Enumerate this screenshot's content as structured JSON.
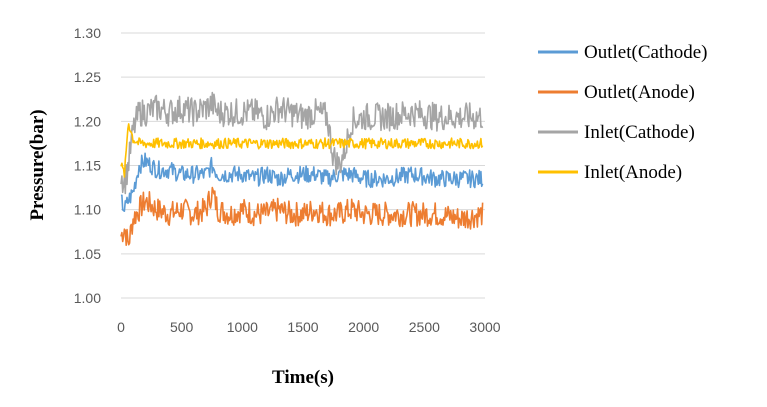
{
  "chart_data": {
    "type": "line",
    "title": "",
    "xlabel": "Time(s)",
    "ylabel": "Pressure(bar)",
    "xlim": [
      0,
      3000
    ],
    "ylim": [
      1.0,
      1.3
    ],
    "x_ticks": [
      "0",
      "500",
      "1000",
      "1500",
      "2000",
      "2500",
      "3000"
    ],
    "y_ticks": [
      "1.00",
      "1.05",
      "1.10",
      "1.15",
      "1.20",
      "1.25",
      "1.30"
    ],
    "grid": "horizontal",
    "legend_position": "right",
    "series": [
      {
        "name": "Outlet(Cathode)",
        "color": "#5B9BD5",
        "x": [
          0,
          30,
          60,
          100,
          150,
          200,
          300,
          400,
          500,
          600,
          700,
          750,
          800,
          900,
          1000,
          1100,
          1200,
          1300,
          1400,
          1500,
          1600,
          1700,
          1800,
          1900,
          2000,
          2200,
          2400,
          2600,
          2800,
          2980
        ],
        "y": [
          1.11,
          1.1,
          1.11,
          1.12,
          1.15,
          1.155,
          1.145,
          1.145,
          1.14,
          1.14,
          1.14,
          1.15,
          1.14,
          1.14,
          1.14,
          1.135,
          1.14,
          1.135,
          1.14,
          1.14,
          1.14,
          1.135,
          1.14,
          1.14,
          1.135,
          1.135,
          1.14,
          1.135,
          1.135,
          1.135
        ]
      },
      {
        "name": "Outlet(Anode)",
        "color": "#ED7D31",
        "x": [
          0,
          30,
          60,
          100,
          150,
          200,
          300,
          400,
          500,
          600,
          700,
          750,
          800,
          900,
          1000,
          1100,
          1200,
          1300,
          1400,
          1500,
          1600,
          1700,
          1800,
          1900,
          2000,
          2200,
          2400,
          2600,
          2800,
          2980
        ],
        "y": [
          1.07,
          1.08,
          1.06,
          1.09,
          1.1,
          1.11,
          1.1,
          1.095,
          1.1,
          1.095,
          1.1,
          1.12,
          1.1,
          1.095,
          1.1,
          1.095,
          1.095,
          1.1,
          1.095,
          1.095,
          1.1,
          1.095,
          1.095,
          1.1,
          1.095,
          1.095,
          1.095,
          1.095,
          1.09,
          1.095
        ]
      },
      {
        "name": "Inlet(Cathode)",
        "color": "#A5A5A5",
        "x": [
          0,
          30,
          60,
          100,
          150,
          200,
          300,
          400,
          500,
          600,
          700,
          750,
          800,
          900,
          1000,
          1100,
          1200,
          1300,
          1400,
          1500,
          1600,
          1700,
          1750,
          1800,
          1850,
          1900,
          2000,
          2200,
          2400,
          2600,
          2800,
          2980
        ],
        "y": [
          1.14,
          1.13,
          1.15,
          1.19,
          1.21,
          1.21,
          1.215,
          1.21,
          1.215,
          1.21,
          1.215,
          1.22,
          1.21,
          1.21,
          1.21,
          1.21,
          1.205,
          1.215,
          1.21,
          1.205,
          1.21,
          1.205,
          1.16,
          1.15,
          1.17,
          1.2,
          1.205,
          1.205,
          1.21,
          1.205,
          1.205,
          1.205
        ]
      },
      {
        "name": "Inlet(Anode)",
        "color": "#FFC000",
        "x": [
          0,
          30,
          60,
          100,
          150,
          200,
          300,
          400,
          500,
          600,
          700,
          800,
          900,
          1000,
          1100,
          1200,
          1300,
          1400,
          1500,
          1600,
          1700,
          1800,
          1900,
          2000,
          2200,
          2400,
          2600,
          2800,
          2980
        ],
        "y": [
          1.15,
          1.14,
          1.2,
          1.18,
          1.175,
          1.175,
          1.175,
          1.175,
          1.175,
          1.175,
          1.175,
          1.175,
          1.175,
          1.175,
          1.175,
          1.175,
          1.175,
          1.175,
          1.175,
          1.175,
          1.175,
          1.175,
          1.175,
          1.175,
          1.175,
          1.175,
          1.175,
          1.175,
          1.175
        ]
      }
    ]
  }
}
